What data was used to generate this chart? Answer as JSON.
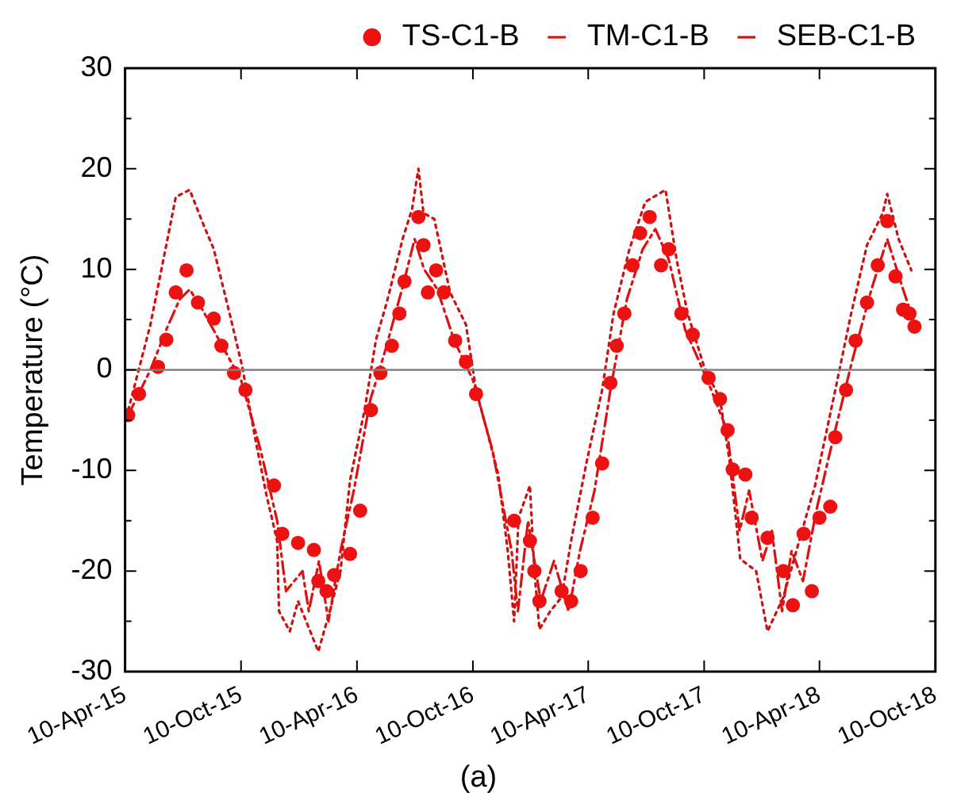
{
  "chart_data": {
    "type": "scatter",
    "ylabel": "Temperature (°C)",
    "annotations": [
      "(a)"
    ],
    "legend": "top",
    "grid": false,
    "xlim": [
      "2015-04-10",
      "2018-10-10"
    ],
    "xticks": [
      {
        "value": "2015-04-10",
        "label": "10-Apr-15"
      },
      {
        "value": "2015-10-10",
        "label": "10-Oct-15"
      },
      {
        "value": "2016-04-10",
        "label": "10-Apr-16"
      },
      {
        "value": "2016-10-10",
        "label": "10-Oct-16"
      },
      {
        "value": "2017-04-10",
        "label": "10-Apr-17"
      },
      {
        "value": "2017-10-10",
        "label": "10-Oct-17"
      },
      {
        "value": "2018-04-10",
        "label": "10-Apr-18"
      },
      {
        "value": "2018-10-10",
        "label": "10-Oct-18"
      }
    ],
    "ylim": [
      -30,
      30
    ],
    "yticks": [
      -30,
      {
        "value": -25,
        "label": null
      },
      -20,
      {
        "value": -15,
        "label": null
      },
      -10,
      {
        "value": -5,
        "label": null
      },
      0,
      {
        "value": 5,
        "label": null
      },
      10,
      {
        "value": 15,
        "label": null
      },
      20,
      {
        "value": 25,
        "label": null
      },
      30
    ],
    "ref_lines": [
      {
        "axis": "y",
        "value": 0,
        "color": "#808080"
      }
    ],
    "series": [
      {
        "name": "TS-C1-B",
        "marker": "circle",
        "color": "#ee1111",
        "x": [
          "2015-04-15",
          "2015-05-02",
          "2015-06-01",
          "2015-06-14",
          "2015-06-29",
          "2015-07-16",
          "2015-08-03",
          "2015-08-28",
          "2015-09-09",
          "2015-09-29",
          "2015-10-17",
          "2015-12-01",
          "2015-12-14",
          "2016-01-08",
          "2016-02-02",
          "2016-02-09",
          "2016-02-22",
          "2016-03-05",
          "2016-03-30",
          "2016-04-15",
          "2016-05-02",
          "2016-05-17",
          "2016-06-04",
          "2016-06-16",
          "2016-06-24",
          "2016-07-16",
          "2016-07-24",
          "2016-07-31",
          "2016-08-13",
          "2016-08-25",
          "2016-09-12",
          "2016-09-29",
          "2016-10-15",
          "2016-12-14",
          "2017-01-08",
          "2017-01-15",
          "2017-01-23",
          "2017-02-27",
          "2017-03-14",
          "2017-03-29",
          "2017-04-17",
          "2017-05-02",
          "2017-05-15",
          "2017-05-25",
          "2017-06-06",
          "2017-06-19",
          "2017-07-01",
          "2017-07-16",
          "2017-08-03",
          "2017-08-15",
          "2017-09-04",
          "2017-09-22",
          "2017-10-17",
          "2017-11-04",
          "2017-11-16",
          "2017-11-24",
          "2017-12-14",
          "2017-12-24",
          "2018-01-18",
          "2018-02-12",
          "2018-02-27",
          "2018-03-16",
          "2018-03-29",
          "2018-04-10",
          "2018-04-27",
          "2018-05-05",
          "2018-05-22",
          "2018-06-06",
          "2018-06-24",
          "2018-07-11",
          "2018-07-26",
          "2018-08-08",
          "2018-08-20",
          "2018-08-30",
          "2018-09-07"
        ],
        "values": [
          -4.5,
          -2.4,
          0.3,
          3,
          7.7,
          9.9,
          6.7,
          5.1,
          2.4,
          -0.3,
          -2,
          -11.5,
          -16.3,
          -17.2,
          -17.9,
          -21,
          -22,
          -20.4,
          -18.3,
          -14,
          -4,
          -0.3,
          2.4,
          5.6,
          8.8,
          15.2,
          12.4,
          7.7,
          9.9,
          7.7,
          2.9,
          0.8,
          -2.4,
          -15,
          -17,
          -20,
          -23,
          -22,
          -23,
          -20,
          -14.7,
          -9.3,
          -1.3,
          2.4,
          5.6,
          10.4,
          13.6,
          15.2,
          10.4,
          12,
          5.6,
          3.5,
          -0.8,
          -2.9,
          -6,
          -9.9,
          -10.4,
          -14.7,
          -16.7,
          -20,
          -23.4,
          -16.3,
          -22,
          -14.7,
          -13.6,
          -6.7,
          -2,
          2.9,
          6.7,
          10.4,
          14.8,
          9.3,
          6,
          5.6,
          4.3
        ]
      },
      {
        "name": "TM-C1-B",
        "type": "line",
        "marker": "none",
        "line_style": "dashdot",
        "color": "#dd1111",
        "x": [
          "2015-04-15",
          "2015-05-20",
          "2015-06-14",
          "2015-07-05",
          "2015-07-21",
          "2015-08-10",
          "2015-09-05",
          "2015-10-10",
          "2015-11-10",
          "2015-12-06",
          "2015-12-20",
          "2016-01-15",
          "2016-01-25",
          "2016-02-10",
          "2016-02-25",
          "2016-03-15",
          "2016-04-05",
          "2016-05-01",
          "2016-05-25",
          "2016-06-20",
          "2016-07-10",
          "2016-07-25",
          "2016-08-15",
          "2016-09-10",
          "2016-10-10",
          "2016-11-10",
          "2016-12-10",
          "2016-12-20",
          "2017-01-05",
          "2017-01-25",
          "2017-02-15",
          "2017-03-10",
          "2017-03-28",
          "2017-04-20",
          "2017-05-15",
          "2017-06-10",
          "2017-07-05",
          "2017-07-25",
          "2017-08-15",
          "2017-09-10",
          "2017-10-15",
          "2017-11-15",
          "2017-12-05",
          "2017-12-20",
          "2018-01-10",
          "2018-01-25",
          "2018-02-10",
          "2018-02-25",
          "2018-03-15",
          "2018-04-05",
          "2018-05-01",
          "2018-06-01",
          "2018-07-01",
          "2018-07-26",
          "2018-08-20",
          "2018-09-05"
        ],
        "values": [
          -4.5,
          0,
          4,
          7,
          8,
          6,
          3,
          -1,
          -8,
          -15,
          -22,
          -20,
          -24,
          -19,
          -25,
          -18,
          -12,
          -3,
          2,
          8,
          13,
          10,
          8,
          3,
          -1,
          -8,
          -18,
          -24,
          -15,
          -23,
          -19,
          -24,
          -18,
          -12,
          -2,
          7,
          12,
          14,
          11,
          4,
          -1,
          -6,
          -16,
          -12,
          -19,
          -16,
          -24,
          -18,
          -21,
          -14,
          -7,
          1,
          8,
          13,
          8,
          5
        ]
      },
      {
        "name": "SEB-C1-B",
        "type": "line",
        "marker": "none",
        "line_style": "dotted",
        "color": "#cc1111",
        "x": [
          "2015-04-15",
          "2015-05-20",
          "2015-06-14",
          "2015-06-29",
          "2015-07-21",
          "2015-08-10",
          "2015-08-28",
          "2015-09-22",
          "2015-10-12",
          "2015-11-01",
          "2015-11-19",
          "2015-12-06",
          "2015-12-09",
          "2015-12-26",
          "2016-01-08",
          "2016-02-09",
          "2016-02-27",
          "2016-03-15",
          "2016-03-30",
          "2016-04-22",
          "2016-05-10",
          "2016-05-27",
          "2016-06-21",
          "2016-07-06",
          "2016-07-16",
          "2016-07-24",
          "2016-08-10",
          "2016-09-04",
          "2016-09-29",
          "2016-10-15",
          "2016-11-01",
          "2016-11-19",
          "2016-12-04",
          "2016-12-14",
          "2016-12-21",
          "2017-01-08",
          "2017-01-15",
          "2017-01-23",
          "2017-02-09",
          "2017-02-27",
          "2017-03-14",
          "2017-04-08",
          "2017-05-02",
          "2017-05-20",
          "2017-06-14",
          "2017-07-09",
          "2017-08-10",
          "2017-08-28",
          "2017-09-14",
          "2017-10-10",
          "2017-11-04",
          "2017-11-19",
          "2017-12-06",
          "2017-12-31",
          "2018-01-18",
          "2018-02-12",
          "2018-03-09",
          "2018-04-03",
          "2018-05-05",
          "2018-05-30",
          "2018-06-24",
          "2018-07-19",
          "2018-07-26",
          "2018-08-13",
          "2018-09-02"
        ],
        "values": [
          -4,
          4.5,
          12.4,
          17.2,
          17.9,
          14.7,
          12,
          5.6,
          0.3,
          -6.7,
          -12.4,
          -17,
          -24,
          -26,
          -23,
          -28,
          -24,
          -20,
          -11,
          -4,
          3,
          6.7,
          13,
          16,
          20,
          15.6,
          15,
          7.7,
          4.5,
          -2,
          -6,
          -10.4,
          -18,
          -25,
          -14.7,
          -11.5,
          -20,
          -25.8,
          -24,
          -22.6,
          -17,
          -9,
          -2,
          5.6,
          12,
          16.7,
          17.9,
          10.8,
          5.6,
          0.3,
          -2.9,
          -9,
          -18.8,
          -20,
          -26,
          -22.6,
          -17,
          -11.5,
          -2,
          5.6,
          12.4,
          15.6,
          17.5,
          13,
          9.9
        ]
      }
    ]
  }
}
